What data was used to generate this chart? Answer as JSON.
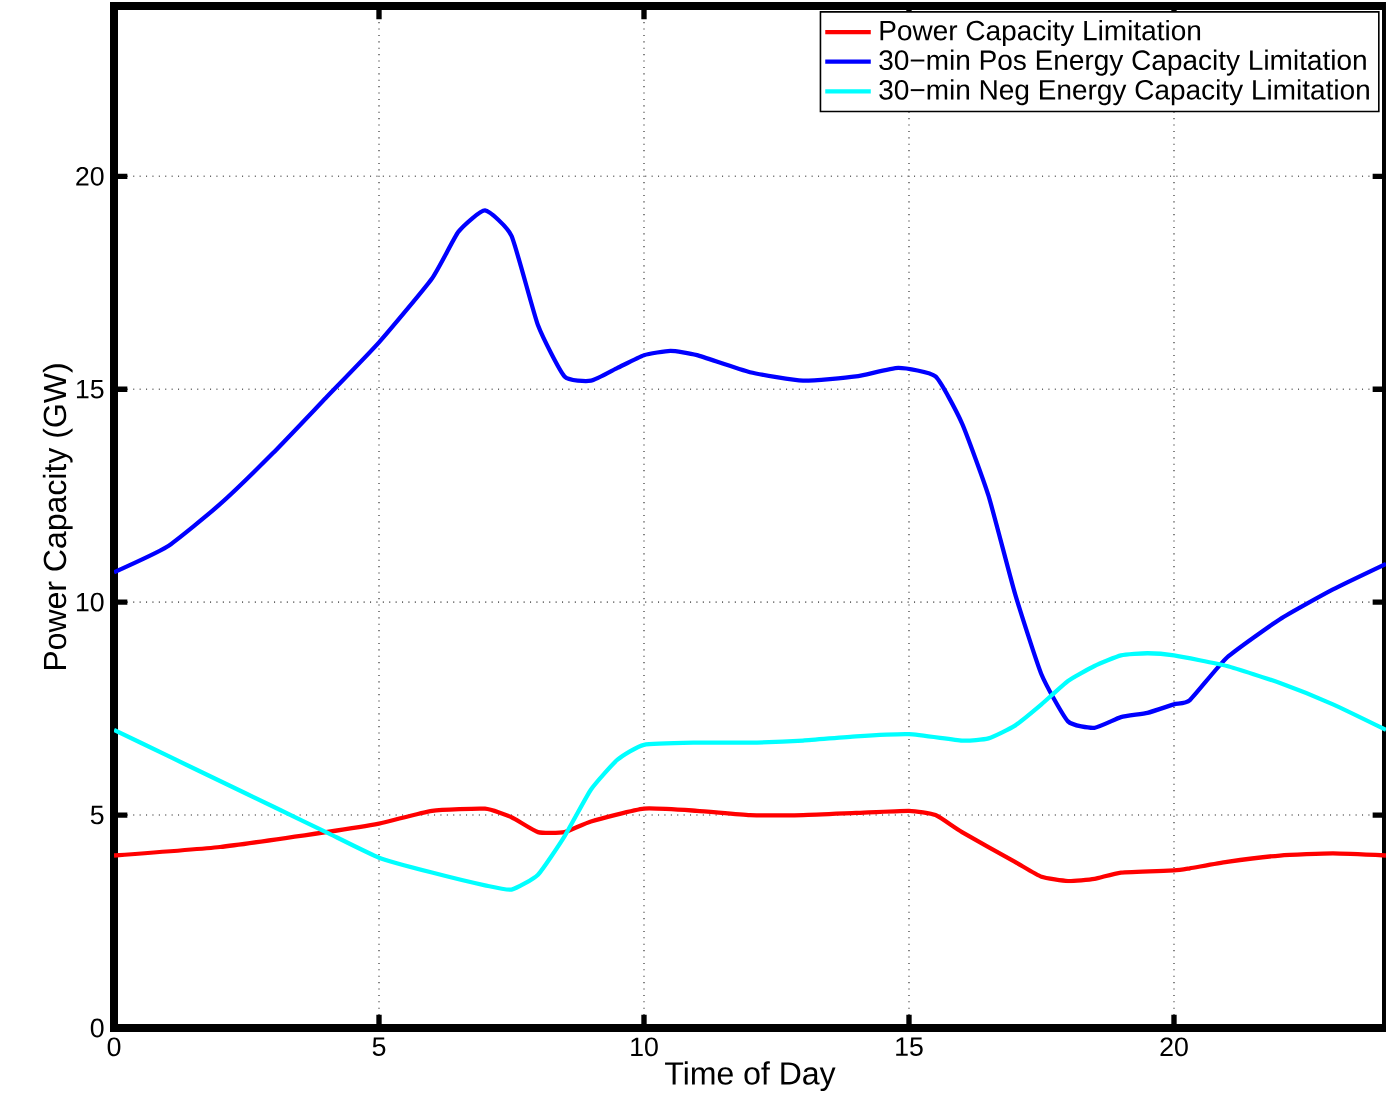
{
  "chart_data": {
    "type": "line",
    "xlabel": "Time of Day",
    "ylabel": "Power Capacity (GW)",
    "xlim": [
      0,
      24
    ],
    "ylim": [
      0,
      24
    ],
    "xticks": [
      0,
      5,
      10,
      15,
      20
    ],
    "yticks": [
      0,
      5,
      10,
      15,
      20
    ],
    "grid": true,
    "legend": "top right",
    "line_style": "solid",
    "marker": "none",
    "series": [
      {
        "name": "Power Capacity Limitation",
        "color": "#ff0000",
        "x": [
          0,
          2,
          4,
          5,
          6,
          7,
          7.5,
          8,
          8.5,
          9,
          10,
          11,
          12,
          13,
          14,
          15,
          15.5,
          16,
          17,
          17.5,
          18,
          18.5,
          19,
          20,
          20.3,
          21,
          22,
          23,
          24
        ],
        "values": [
          4.05,
          4.25,
          4.6,
          4.8,
          5.1,
          5.15,
          4.95,
          4.6,
          4.6,
          4.85,
          5.15,
          5.1,
          5.0,
          5.0,
          5.05,
          5.1,
          5.0,
          4.6,
          3.9,
          3.55,
          3.45,
          3.5,
          3.65,
          3.7,
          3.75,
          3.9,
          4.05,
          4.1,
          4.05
        ]
      },
      {
        "name": "30−min Pos Energy Capacity Limitation",
        "color": "#0000ff",
        "x": [
          0,
          1,
          2,
          3,
          4,
          5,
          6,
          6.5,
          7,
          7.5,
          8,
          8.5,
          9,
          9.5,
          10,
          10.5,
          11,
          12,
          13,
          14,
          14.8,
          15.5,
          16,
          16.5,
          17,
          17.5,
          18,
          18.5,
          19,
          19.5,
          20,
          20.3,
          21,
          22,
          23,
          24
        ],
        "values": [
          10.7,
          11.3,
          12.3,
          13.5,
          14.8,
          16.1,
          17.6,
          18.7,
          19.2,
          18.6,
          16.5,
          15.3,
          15.2,
          15.5,
          15.8,
          15.9,
          15.8,
          15.4,
          15.2,
          15.3,
          15.5,
          15.3,
          14.2,
          12.5,
          10.2,
          8.3,
          7.2,
          7.05,
          7.3,
          7.4,
          7.6,
          7.7,
          8.7,
          9.6,
          10.3,
          10.9
        ]
      },
      {
        "name": "30−min Neg Energy Capacity Limitation",
        "color": "#00ffff",
        "x": [
          0,
          1,
          2,
          3,
          4,
          5,
          6,
          7,
          7.5,
          8,
          8.5,
          9,
          9.5,
          10,
          11,
          12,
          13,
          14,
          15,
          16,
          16.5,
          17,
          17.5,
          18,
          18.5,
          19,
          19.5,
          20,
          21,
          22,
          23,
          24
        ],
        "values": [
          7.0,
          6.4,
          5.8,
          5.2,
          4.6,
          4.0,
          3.65,
          3.35,
          3.25,
          3.6,
          4.5,
          5.6,
          6.3,
          6.65,
          6.7,
          6.7,
          6.75,
          6.85,
          6.9,
          6.75,
          6.8,
          7.1,
          7.6,
          8.15,
          8.5,
          8.75,
          8.8,
          8.75,
          8.5,
          8.1,
          7.6,
          7.0
        ]
      }
    ]
  }
}
